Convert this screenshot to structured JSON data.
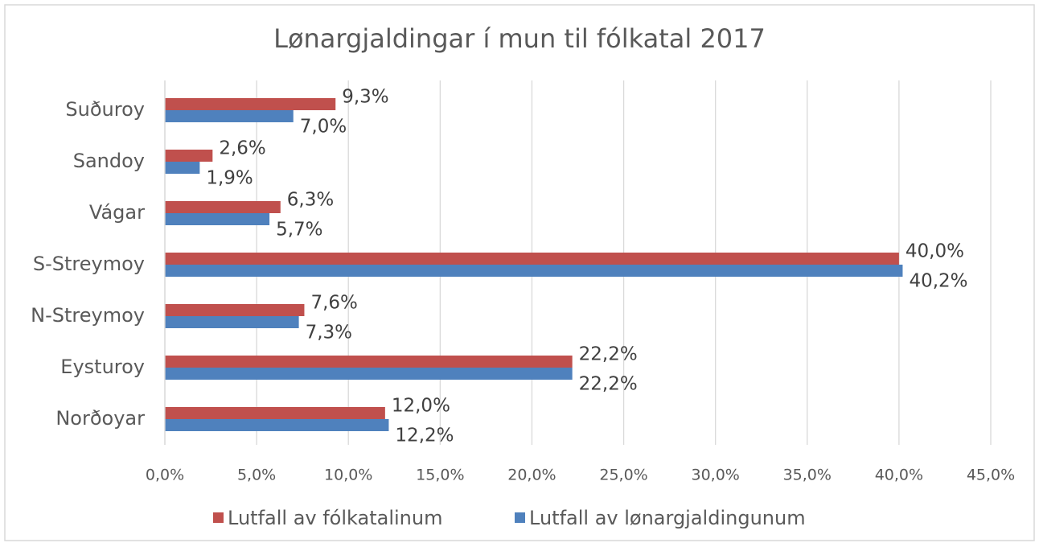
{
  "chart_data": {
    "type": "bar",
    "orientation": "horizontal",
    "title": "Lønargjaldingar í mun til fólkatal 2017",
    "categories": [
      "Suðuroy",
      "Sandoy",
      "Vágar",
      "S-Streymoy",
      "N-Streymoy",
      "Eysturoy",
      "Norðoyar"
    ],
    "series": [
      {
        "name": "Lutfall av fólkatalinum",
        "color": "#c0504d",
        "values": [
          9.3,
          2.6,
          6.3,
          40.0,
          7.6,
          22.2,
          12.0
        ],
        "value_labels": [
          "9,3%",
          "2,6%",
          "6,3%",
          "40,0%",
          "7,6%",
          "22,2%",
          "12,0%"
        ]
      },
      {
        "name": "Lutfall av lønargjaldingunum",
        "color": "#4f81bd",
        "values": [
          7.0,
          1.9,
          5.7,
          40.2,
          7.3,
          22.2,
          12.2
        ],
        "value_labels": [
          "7,0%",
          "1,9%",
          "5,7%",
          "40,2%",
          "7,3%",
          "22,2%",
          "12,2%"
        ]
      }
    ],
    "xlim": [
      0,
      45
    ],
    "xticks": [
      {
        "value": 0,
        "label": "0,0%"
      },
      {
        "value": 5,
        "label": "5,0%"
      },
      {
        "value": 10,
        "label": "10,0%"
      },
      {
        "value": 15,
        "label": "15,0%"
      },
      {
        "value": 20,
        "label": "20,0%"
      },
      {
        "value": 25,
        "label": "25,0%"
      },
      {
        "value": 30,
        "label": "30,0%"
      },
      {
        "value": 35,
        "label": "35,0%"
      },
      {
        "value": 40,
        "label": "40,0%"
      },
      {
        "value": 45,
        "label": "45,0%"
      }
    ],
    "grid": true,
    "legend": "bottom"
  }
}
